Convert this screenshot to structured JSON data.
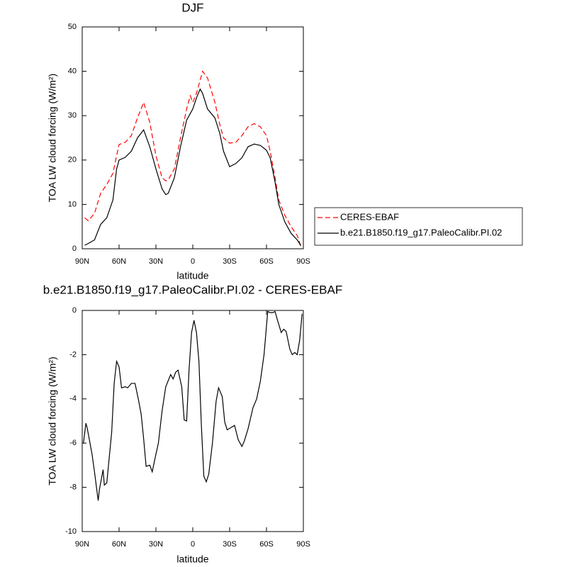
{
  "chart_data": [
    {
      "type": "line",
      "title": "DJF",
      "xlabel": "latitude",
      "ylabel": "TOA LW cloud forcing (W/m²)",
      "x": [
        88,
        85,
        80,
        75,
        70,
        65,
        62,
        60,
        55,
        50,
        45,
        40,
        35,
        30,
        25,
        22,
        20,
        15,
        10,
        5,
        2,
        0,
        -3,
        -6,
        -8,
        -12,
        -18,
        -22,
        -25,
        -30,
        -35,
        -40,
        -45,
        -50,
        -55,
        -60,
        -63,
        -67,
        -70,
        -75,
        -80,
        -85,
        -88
      ],
      "series": [
        {
          "name": "CERES-EBAF",
          "color": "#ff0000",
          "dashed": true,
          "values": [
            7,
            6.3,
            8,
            12.5,
            14.5,
            17,
            21,
            23.5,
            24,
            25.5,
            29.5,
            33,
            28.5,
            21,
            16,
            15.3,
            15.5,
            18,
            25,
            31.5,
            34.5,
            33,
            35,
            38,
            40,
            38.5,
            33,
            28,
            25,
            23.8,
            24,
            25.5,
            27.5,
            28.2,
            27.5,
            25.5,
            22,
            16,
            11,
            7.5,
            5,
            3,
            0.5
          ]
        },
        {
          "name": "b.e21.B1850.f19_g17.PaleoCalibr.PI.02",
          "color": "#000000",
          "dashed": false,
          "values": [
            0.8,
            1.2,
            2,
            5.5,
            7,
            11,
            18,
            20,
            20.6,
            22,
            25,
            26.8,
            23,
            18,
            13.5,
            12.2,
            12.5,
            16,
            23,
            29,
            30.5,
            31.5,
            34,
            36,
            35,
            31.5,
            29.5,
            26,
            22,
            18.5,
            19.2,
            20.5,
            23,
            23.6,
            23.3,
            22.2,
            20.5,
            15,
            10,
            6,
            3.5,
            2,
            0.7
          ]
        }
      ],
      "xlim": [
        90,
        -90
      ],
      "xticks": [
        {
          "value": 90,
          "label": "90N"
        },
        {
          "value": 60,
          "label": "60N"
        },
        {
          "value": 30,
          "label": "30N"
        },
        0,
        {
          "value": -30,
          "label": "30S"
        },
        {
          "value": -60,
          "label": "60S"
        },
        {
          "value": -90,
          "label": "90S"
        }
      ],
      "ylim": [
        0,
        50
      ],
      "yticks": [
        0,
        10,
        20,
        30,
        40,
        50
      ],
      "legend": "right"
    },
    {
      "type": "line",
      "title": "b.e21.B1850.f19_g17.PaleoCalibr.PI.02 - CERES-EBAF",
      "xlabel": "latitude",
      "ylabel": "TOA LW cloud forcing (W/m²)",
      "x": [
        89,
        87,
        86,
        82,
        80,
        77,
        76,
        73,
        72,
        70,
        66,
        64,
        62,
        60,
        58,
        55,
        53,
        50,
        47,
        44,
        42,
        40,
        38,
        35,
        33,
        30,
        28,
        25,
        22,
        18,
        16,
        14,
        12,
        9,
        7,
        5,
        3,
        1,
        -1,
        -3,
        -5,
        -7,
        -9,
        -11,
        -13,
        -16,
        -19,
        -21,
        -24,
        -26,
        -28,
        -31,
        -34,
        -37,
        -40,
        -42,
        -45,
        -49,
        -52,
        -55,
        -58,
        -61,
        -63,
        -65,
        -67,
        -69,
        -72,
        -74,
        -76,
        -79,
        -81,
        -83,
        -85,
        -87,
        -89
      ],
      "series": [
        {
          "color": "#000000",
          "dashed": false,
          "values": [
            -6.0,
            -5.1,
            -5.3,
            -6.5,
            -7.3,
            -8.6,
            -8.1,
            -7.2,
            -7.9,
            -7.8,
            -5.5,
            -3.3,
            -2.3,
            -2.55,
            -3.5,
            -3.45,
            -3.5,
            -3.3,
            -3.3,
            -4.1,
            -4.7,
            -5.8,
            -7.05,
            -7.0,
            -7.3,
            -6.5,
            -6.0,
            -4.55,
            -3.45,
            -2.9,
            -3.1,
            -2.8,
            -2.7,
            -3.45,
            -4.95,
            -5.0,
            -2.65,
            -1.0,
            -0.45,
            -1.0,
            -2.3,
            -5.2,
            -7.5,
            -7.75,
            -7.4,
            -6.0,
            -4.1,
            -3.5,
            -3.9,
            -5.05,
            -5.4,
            -5.3,
            -5.2,
            -5.85,
            -6.15,
            -5.9,
            -5.35,
            -4.4,
            -4.0,
            -3.2,
            -2.0,
            -0.05,
            -0.1,
            -0.1,
            -0.05,
            -0.45,
            -1.0,
            -0.85,
            -0.95,
            -1.75,
            -2.0,
            -1.9,
            -2.0,
            -1.35,
            -0.15
          ]
        }
      ],
      "xlim": [
        90,
        -90
      ],
      "xticks": [
        {
          "value": 90,
          "label": "90N"
        },
        {
          "value": 60,
          "label": "60N"
        },
        {
          "value": 30,
          "label": "30N"
        },
        0,
        {
          "value": -30,
          "label": "30S"
        },
        {
          "value": -60,
          "label": "60S"
        },
        {
          "value": -90,
          "label": "90S"
        }
      ],
      "ylim": [
        -10,
        0
      ],
      "yticks": [
        -10,
        -8,
        -6,
        -4,
        -2,
        0
      ]
    }
  ]
}
